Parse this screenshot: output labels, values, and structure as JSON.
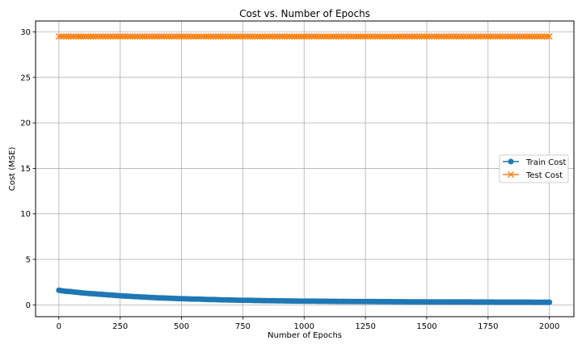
{
  "chart_data": {
    "type": "line",
    "title": "Cost vs. Number of Epochs",
    "xlabel": "Number of Epochs",
    "ylabel": "Cost (MSE)",
    "xlim": [
      -95,
      2100
    ],
    "ylim": [
      -1.3,
      31.2
    ],
    "xticks": [
      0,
      250,
      500,
      750,
      1000,
      1250,
      1500,
      1750,
      2000
    ],
    "yticks": [
      0,
      5,
      10,
      15,
      20,
      25,
      30
    ],
    "grid": true,
    "legend_position": "center-right",
    "series": [
      {
        "name": "Train Cost",
        "marker": "circle",
        "color": "#1f77b4",
        "x": [
          0,
          25,
          50,
          100,
          150,
          200,
          250,
          300,
          350,
          400,
          500,
          600,
          700,
          800,
          900,
          1000,
          1200,
          1400,
          1600,
          1800,
          2000
        ],
        "values": [
          1.6,
          1.5,
          1.45,
          1.3,
          1.2,
          1.1,
          1.0,
          0.92,
          0.85,
          0.78,
          0.68,
          0.6,
          0.53,
          0.48,
          0.44,
          0.41,
          0.37,
          0.34,
          0.32,
          0.3,
          0.29
        ]
      },
      {
        "name": "Test Cost",
        "marker": "x",
        "color": "#ff7f0e",
        "x": [
          0,
          2000
        ],
        "values": [
          29.5,
          29.5
        ]
      }
    ]
  }
}
